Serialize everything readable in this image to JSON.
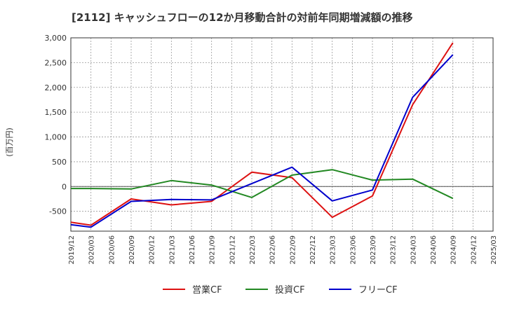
{
  "chart_data": {
    "type": "line",
    "title": "[2112]  キャッシュフローの12か月移動合計の対前年同期増減額の推移",
    "ylabel": "(百万円)",
    "xlabel": "",
    "ylim": [
      -900,
      3000
    ],
    "yticks": [
      3000,
      2500,
      2000,
      1500,
      1000,
      500,
      0,
      -500
    ],
    "ytick_labels": [
      "3,000",
      "2,500",
      "2,000",
      "1,500",
      "1,000",
      "500",
      "0",
      "-500"
    ],
    "categories": [
      "2019/12",
      "2020/03",
      "2020/06",
      "2020/09",
      "2020/12",
      "2021/03",
      "2021/06",
      "2021/09",
      "2021/12",
      "2022/03",
      "2022/06",
      "2022/09",
      "2022/12",
      "2023/03",
      "2023/06",
      "2023/09",
      "2023/12",
      "2024/03",
      "2024/06",
      "2024/09",
      "2024/12",
      "2025/03"
    ],
    "grid": true,
    "legend_position": "bottom",
    "series": [
      {
        "name": "営業CF",
        "color": "#dd1111",
        "values": [
          -720,
          -780,
          null,
          -250,
          null,
          -370,
          null,
          -300,
          null,
          290,
          null,
          180,
          null,
          -620,
          null,
          -190,
          null,
          1650,
          null,
          2900,
          null,
          null
        ]
      },
      {
        "name": "投資CF",
        "color": "#228822",
        "values": [
          -40,
          -40,
          null,
          -50,
          null,
          120,
          null,
          30,
          null,
          -220,
          null,
          230,
          null,
          340,
          null,
          130,
          null,
          150,
          null,
          -240,
          null,
          null
        ]
      },
      {
        "name": "フリーCF",
        "color": "#0000cc",
        "values": [
          -770,
          -820,
          null,
          -300,
          null,
          -260,
          null,
          -270,
          null,
          60,
          null,
          390,
          null,
          -290,
          null,
          -70,
          null,
          1800,
          null,
          2660,
          null,
          null
        ]
      }
    ]
  }
}
